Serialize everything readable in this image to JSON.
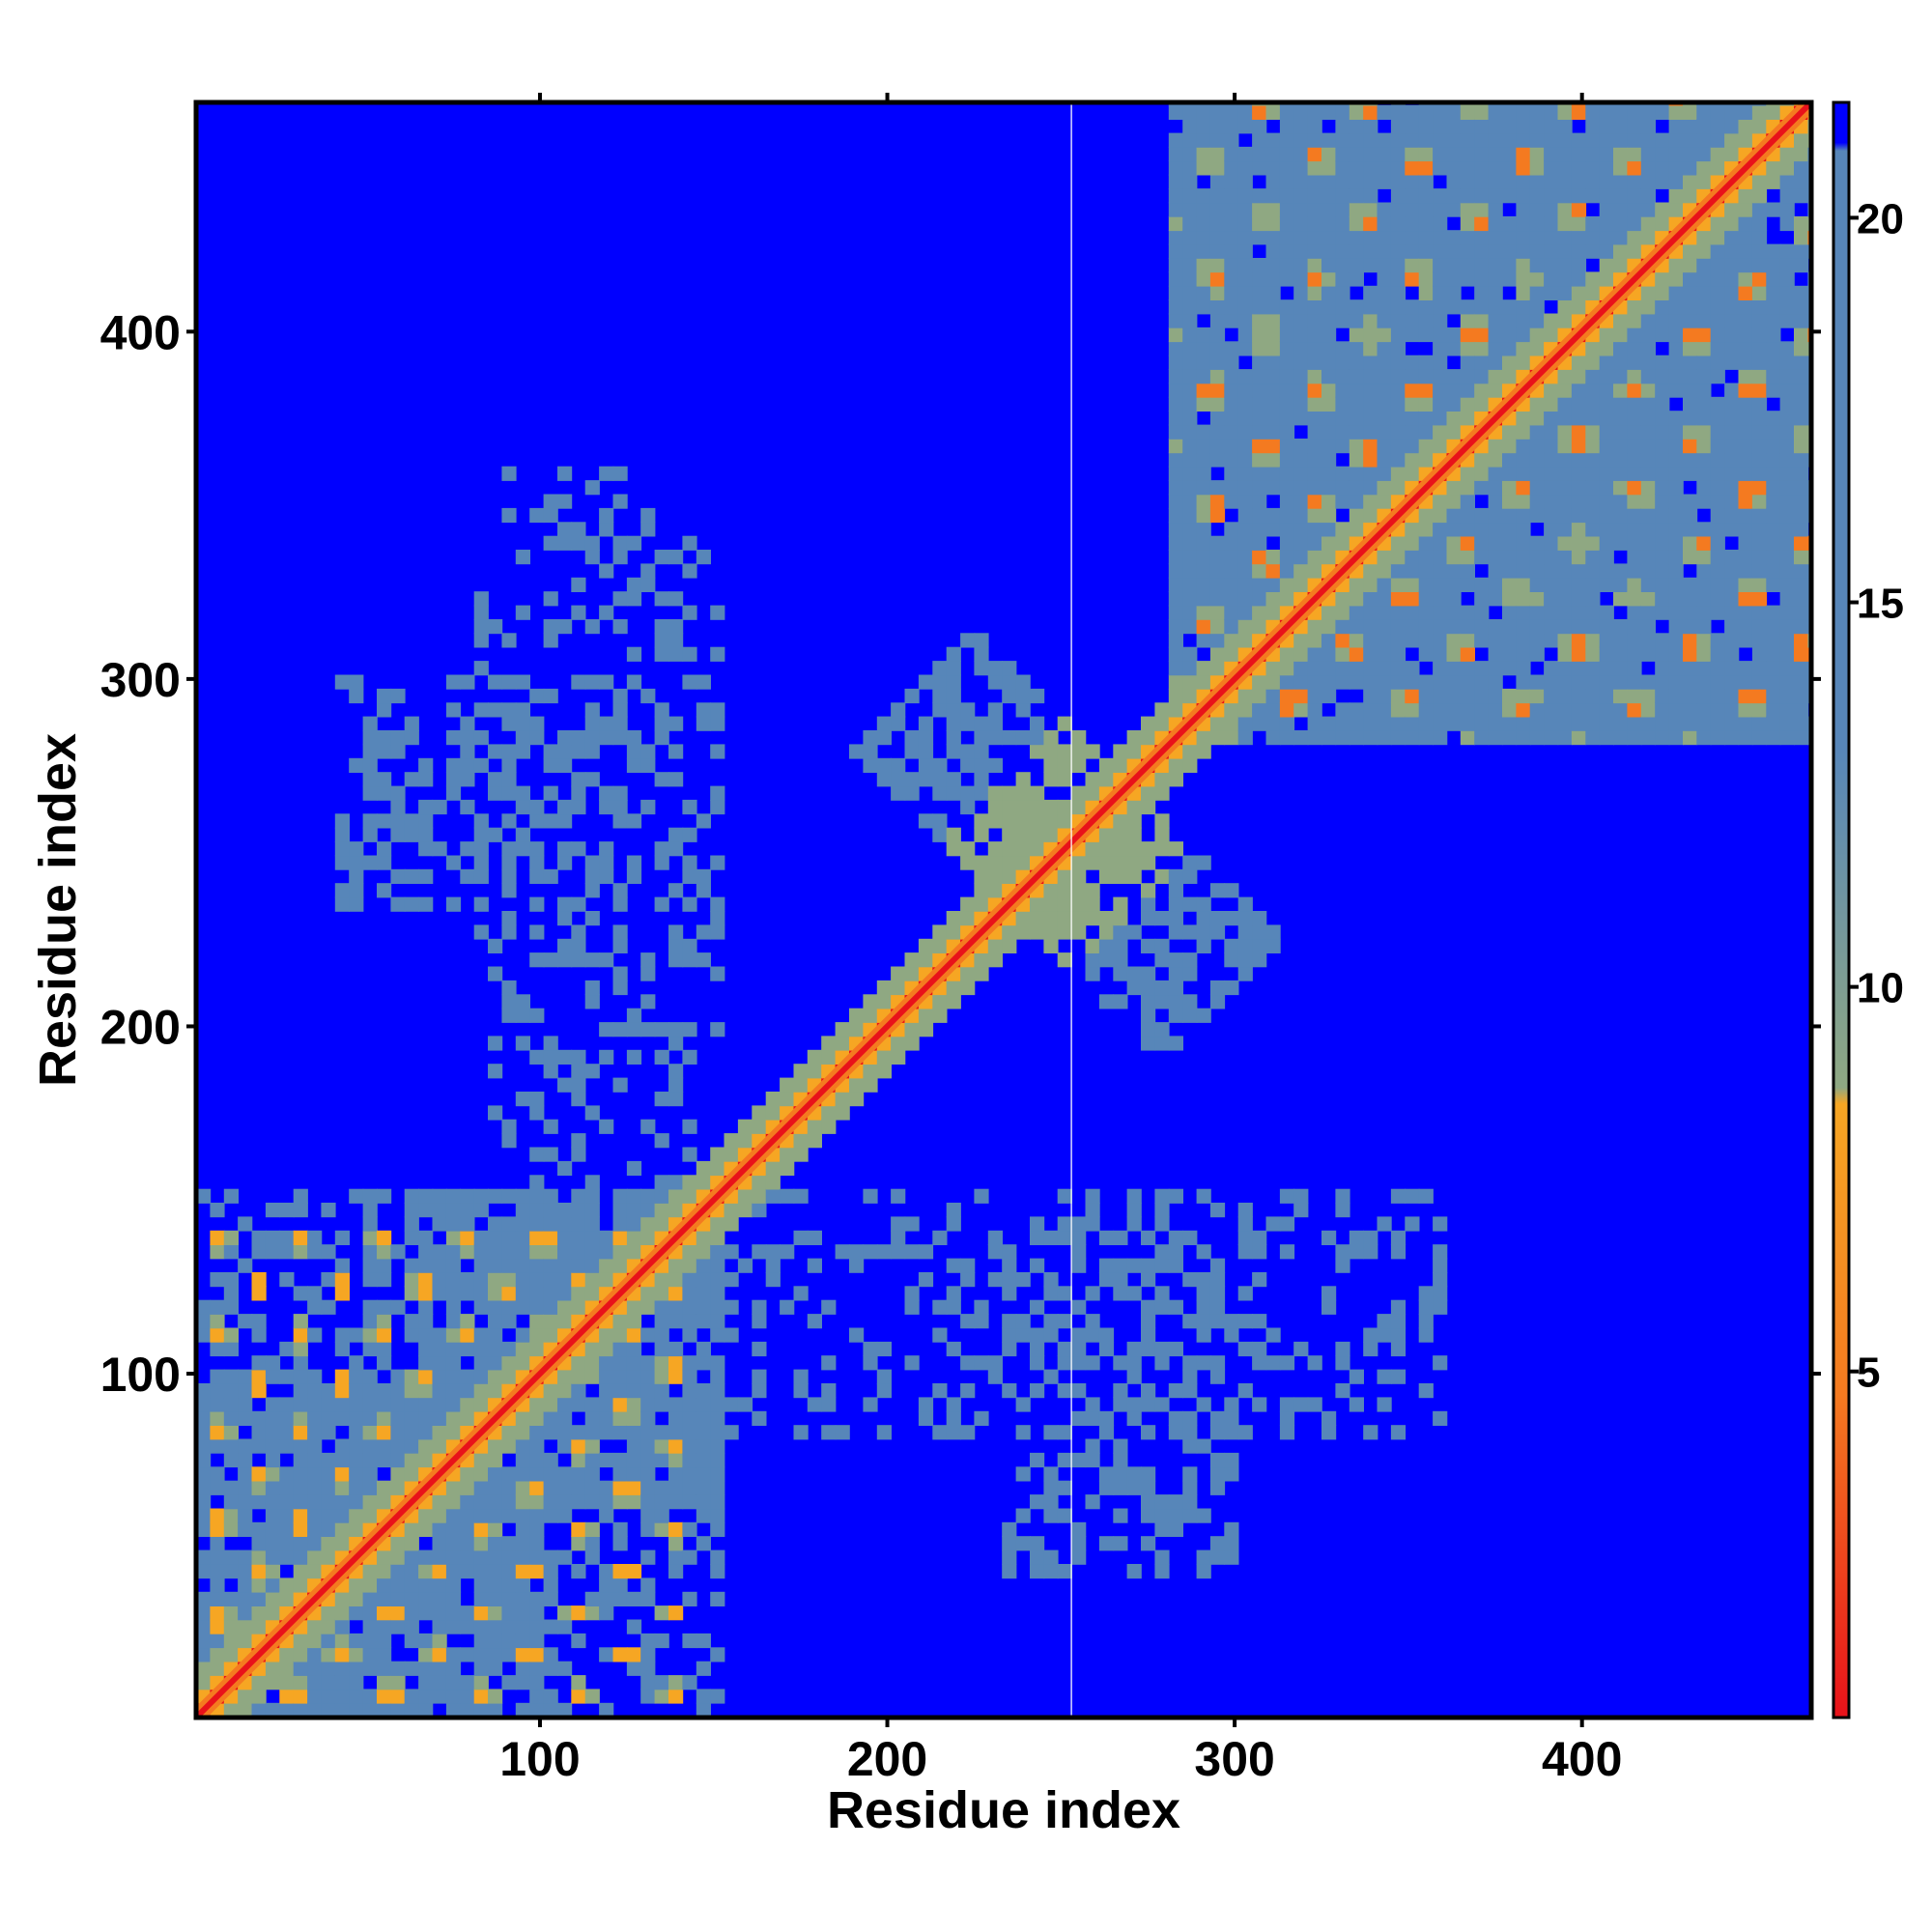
{
  "chart_data": {
    "type": "heatmap",
    "title": "",
    "xlabel": "Residue index",
    "ylabel": "Residue index",
    "n_residues": 466,
    "xlim": [
      1,
      466
    ],
    "ylim": [
      1,
      466
    ],
    "x_ticks": [
      100,
      200,
      300,
      400
    ],
    "y_ticks": [
      100,
      200,
      300,
      400
    ],
    "colorbar": {
      "ticks": [
        5,
        10,
        15,
        20
      ],
      "range": [
        0.5,
        21.5
      ],
      "colors": {
        "low": "#e8121a",
        "mid_low": "#f47a20",
        "orange": "#f6a623",
        "mid": "#8fa882",
        "high": "#5786b9",
        "max": "#0000ff"
      }
    },
    "regions": {
      "domain_a": {
        "residues": [
          1,
          150
        ],
        "description_level": 16
      },
      "domain_b": {
        "residues": [
          280,
          466
        ],
        "description_level": 16
      },
      "cross_contact": {
        "center": [
          250,
          250
        ],
        "spread": 45
      },
      "diagonal_band_level": 1
    },
    "gap_line_residue": 253
  }
}
